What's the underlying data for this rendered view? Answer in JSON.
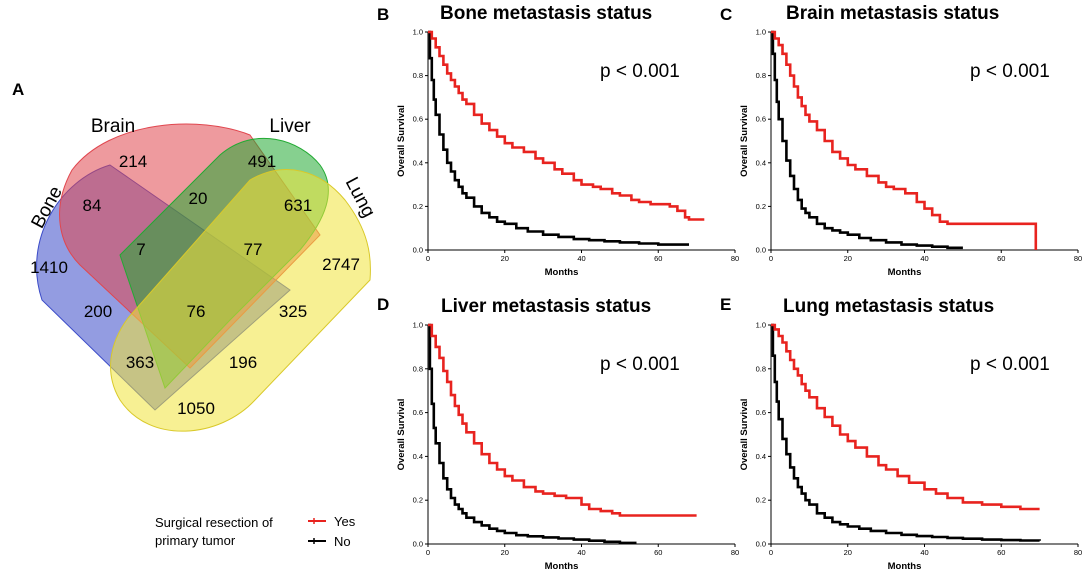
{
  "panels": {
    "a": "A",
    "b": "B",
    "c": "C",
    "d": "D",
    "e": "E"
  },
  "venn": {
    "sets": [
      "Bone",
      "Brain",
      "Liver",
      "Lung"
    ],
    "set_colors": {
      "Bone": "#3b4bc8",
      "Brain": "#e0474f",
      "Liver": "#22aa33",
      "Lung": "#f0e43a"
    },
    "counts": {
      "bone_only": "1410",
      "brain_only": "214",
      "liver_only": "491",
      "lung_only": "2747",
      "bone_brain": "84",
      "brain_liver": "20",
      "liver_lung": "631",
      "bone_brain_liver": "7",
      "brain_liver_lung": "77",
      "bone_liver": "200",
      "all_four": "76",
      "brain_lung": "325",
      "bone_liver_lung": "363",
      "bone_brain_lung": "196",
      "bone_lung": "1050"
    }
  },
  "legend": {
    "title_line1": "Surgical resection of",
    "title_line2": "primary tumor",
    "yes": "Yes",
    "no": "No",
    "yes_color": "#e8231f",
    "no_color": "#000000"
  },
  "chart_data": [
    {
      "type": "line",
      "id": "B",
      "title": "Bone metastasis status",
      "annotation": "p < 0.001",
      "xlabel": "Months",
      "ylabel": "Overall Survival",
      "xlim": [
        0,
        80
      ],
      "ylim": [
        0,
        1
      ],
      "xticks": [
        "0",
        "20",
        "40",
        "60",
        "80"
      ],
      "yticks": [
        "0.0",
        "0.2",
        "0.4",
        "0.6",
        "0.8",
        "1.0"
      ],
      "series": [
        {
          "name": "Yes",
          "x": [
            0,
            1,
            2,
            3,
            4,
            5,
            6,
            7,
            8,
            9,
            10,
            12,
            14,
            16,
            18,
            20,
            22,
            25,
            28,
            30,
            33,
            35,
            38,
            40,
            43,
            45,
            48,
            50,
            53,
            55,
            58,
            60,
            63,
            65,
            67,
            68,
            70,
            72
          ],
          "y": [
            1.0,
            0.97,
            0.93,
            0.89,
            0.85,
            0.81,
            0.78,
            0.75,
            0.72,
            0.69,
            0.67,
            0.62,
            0.58,
            0.55,
            0.52,
            0.49,
            0.47,
            0.45,
            0.42,
            0.4,
            0.37,
            0.35,
            0.32,
            0.3,
            0.29,
            0.28,
            0.26,
            0.25,
            0.23,
            0.22,
            0.21,
            0.21,
            0.2,
            0.18,
            0.15,
            0.14,
            0.14,
            0.14
          ]
        },
        {
          "name": "No",
          "x": [
            0,
            0.5,
            1,
            1.5,
            2,
            3,
            4,
            5,
            6,
            7,
            8,
            9,
            10,
            12,
            14,
            16,
            18,
            20,
            23,
            26,
            30,
            34,
            38,
            42,
            46,
            50,
            55,
            60,
            65,
            68
          ],
          "y": [
            1.0,
            0.88,
            0.78,
            0.69,
            0.62,
            0.53,
            0.46,
            0.4,
            0.36,
            0.32,
            0.29,
            0.26,
            0.24,
            0.2,
            0.17,
            0.15,
            0.13,
            0.12,
            0.1,
            0.085,
            0.07,
            0.06,
            0.05,
            0.045,
            0.04,
            0.035,
            0.03,
            0.025,
            0.025,
            0.025
          ]
        }
      ]
    },
    {
      "type": "line",
      "id": "C",
      "title": "Brain metastasis status",
      "annotation": "p < 0.001",
      "xlabel": "Months",
      "ylabel": "Overall Survival",
      "xlim": [
        0,
        80
      ],
      "ylim": [
        0,
        1
      ],
      "xticks": [
        "0",
        "20",
        "40",
        "60",
        "80"
      ],
      "yticks": [
        "0.0",
        "0.2",
        "0.4",
        "0.6",
        "0.8",
        "1.0"
      ],
      "series": [
        {
          "name": "Yes",
          "x": [
            0,
            1,
            2,
            3,
            4,
            5,
            6,
            7,
            8,
            9,
            10,
            12,
            14,
            16,
            18,
            20,
            22,
            25,
            28,
            30,
            32,
            35,
            38,
            40,
            42,
            44,
            46,
            50,
            55,
            60,
            65,
            68,
            69
          ],
          "y": [
            1.0,
            0.97,
            0.94,
            0.9,
            0.85,
            0.8,
            0.75,
            0.7,
            0.66,
            0.62,
            0.59,
            0.55,
            0.5,
            0.45,
            0.42,
            0.39,
            0.37,
            0.34,
            0.31,
            0.29,
            0.28,
            0.26,
            0.22,
            0.19,
            0.16,
            0.13,
            0.12,
            0.12,
            0.12,
            0.12,
            0.12,
            0.12,
            0.0
          ]
        },
        {
          "name": "No",
          "x": [
            0,
            0.5,
            1,
            1.5,
            2,
            3,
            4,
            5,
            6,
            7,
            8,
            9,
            10,
            12,
            14,
            16,
            18,
            20,
            23,
            26,
            30,
            34,
            38,
            42,
            46,
            50
          ],
          "y": [
            1.0,
            0.9,
            0.78,
            0.68,
            0.6,
            0.5,
            0.41,
            0.34,
            0.28,
            0.23,
            0.19,
            0.17,
            0.15,
            0.12,
            0.1,
            0.09,
            0.08,
            0.07,
            0.055,
            0.045,
            0.035,
            0.025,
            0.02,
            0.015,
            0.01,
            0.01
          ]
        }
      ]
    },
    {
      "type": "line",
      "id": "D",
      "title": "Liver metastasis status",
      "annotation": "p < 0.001",
      "xlabel": "Months",
      "ylabel": "Overall Survival",
      "xlim": [
        0,
        80
      ],
      "ylim": [
        0,
        1
      ],
      "xticks": [
        "0",
        "20",
        "40",
        "60",
        "80"
      ],
      "yticks": [
        "0.0",
        "0.2",
        "0.4",
        "0.6",
        "0.8",
        "1.0"
      ],
      "series": [
        {
          "name": "Yes",
          "x": [
            0,
            1,
            2,
            3,
            4,
            5,
            6,
            7,
            8,
            9,
            10,
            12,
            14,
            16,
            18,
            20,
            22,
            25,
            28,
            30,
            33,
            36,
            40,
            42,
            45,
            48,
            50,
            55,
            60,
            65,
            70
          ],
          "y": [
            1.0,
            0.95,
            0.9,
            0.85,
            0.79,
            0.74,
            0.68,
            0.63,
            0.59,
            0.55,
            0.51,
            0.46,
            0.41,
            0.37,
            0.34,
            0.31,
            0.29,
            0.26,
            0.24,
            0.23,
            0.22,
            0.21,
            0.18,
            0.16,
            0.15,
            0.14,
            0.13,
            0.13,
            0.13,
            0.13,
            0.13
          ]
        },
        {
          "name": "No",
          "x": [
            0,
            0.5,
            1,
            1.5,
            2,
            3,
            4,
            5,
            6,
            7,
            8,
            9,
            10,
            12,
            14,
            16,
            18,
            20,
            23,
            26,
            30,
            34,
            38,
            42,
            46,
            50,
            54
          ],
          "y": [
            1.0,
            0.8,
            0.64,
            0.53,
            0.46,
            0.37,
            0.3,
            0.25,
            0.21,
            0.18,
            0.16,
            0.14,
            0.12,
            0.1,
            0.085,
            0.07,
            0.06,
            0.05,
            0.04,
            0.035,
            0.03,
            0.025,
            0.02,
            0.015,
            0.01,
            0.005,
            0.0
          ]
        }
      ]
    },
    {
      "type": "line",
      "id": "E",
      "title": "Lung metastasis status",
      "annotation": "p < 0.001",
      "xlabel": "Months",
      "ylabel": "Overall Survival",
      "xlim": [
        0,
        80
      ],
      "ylim": [
        0,
        1
      ],
      "xticks": [
        "0",
        "20",
        "40",
        "60",
        "80"
      ],
      "yticks": [
        "0.0",
        "0.2",
        "0.4",
        "0.6",
        "0.8",
        "1.0"
      ],
      "series": [
        {
          "name": "Yes",
          "x": [
            0,
            1,
            2,
            3,
            4,
            5,
            6,
            7,
            8,
            9,
            10,
            12,
            14,
            16,
            18,
            20,
            22,
            25,
            28,
            30,
            33,
            36,
            40,
            43,
            46,
            50,
            55,
            60,
            65,
            68,
            70
          ],
          "y": [
            1.0,
            0.98,
            0.95,
            0.92,
            0.88,
            0.84,
            0.8,
            0.77,
            0.73,
            0.7,
            0.67,
            0.62,
            0.58,
            0.54,
            0.5,
            0.47,
            0.44,
            0.4,
            0.36,
            0.34,
            0.31,
            0.28,
            0.25,
            0.23,
            0.21,
            0.19,
            0.18,
            0.17,
            0.16,
            0.16,
            0.16
          ]
        },
        {
          "name": "No",
          "x": [
            0,
            0.5,
            1,
            1.5,
            2,
            3,
            4,
            5,
            6,
            7,
            8,
            9,
            10,
            12,
            14,
            16,
            18,
            20,
            23,
            26,
            30,
            34,
            38,
            42,
            46,
            50,
            55,
            60,
            65,
            70
          ],
          "y": [
            1.0,
            0.86,
            0.74,
            0.65,
            0.57,
            0.48,
            0.41,
            0.35,
            0.3,
            0.26,
            0.23,
            0.2,
            0.18,
            0.14,
            0.12,
            0.1,
            0.09,
            0.08,
            0.07,
            0.06,
            0.05,
            0.042,
            0.036,
            0.032,
            0.028,
            0.024,
            0.02,
            0.018,
            0.016,
            0.015
          ]
        }
      ]
    }
  ]
}
